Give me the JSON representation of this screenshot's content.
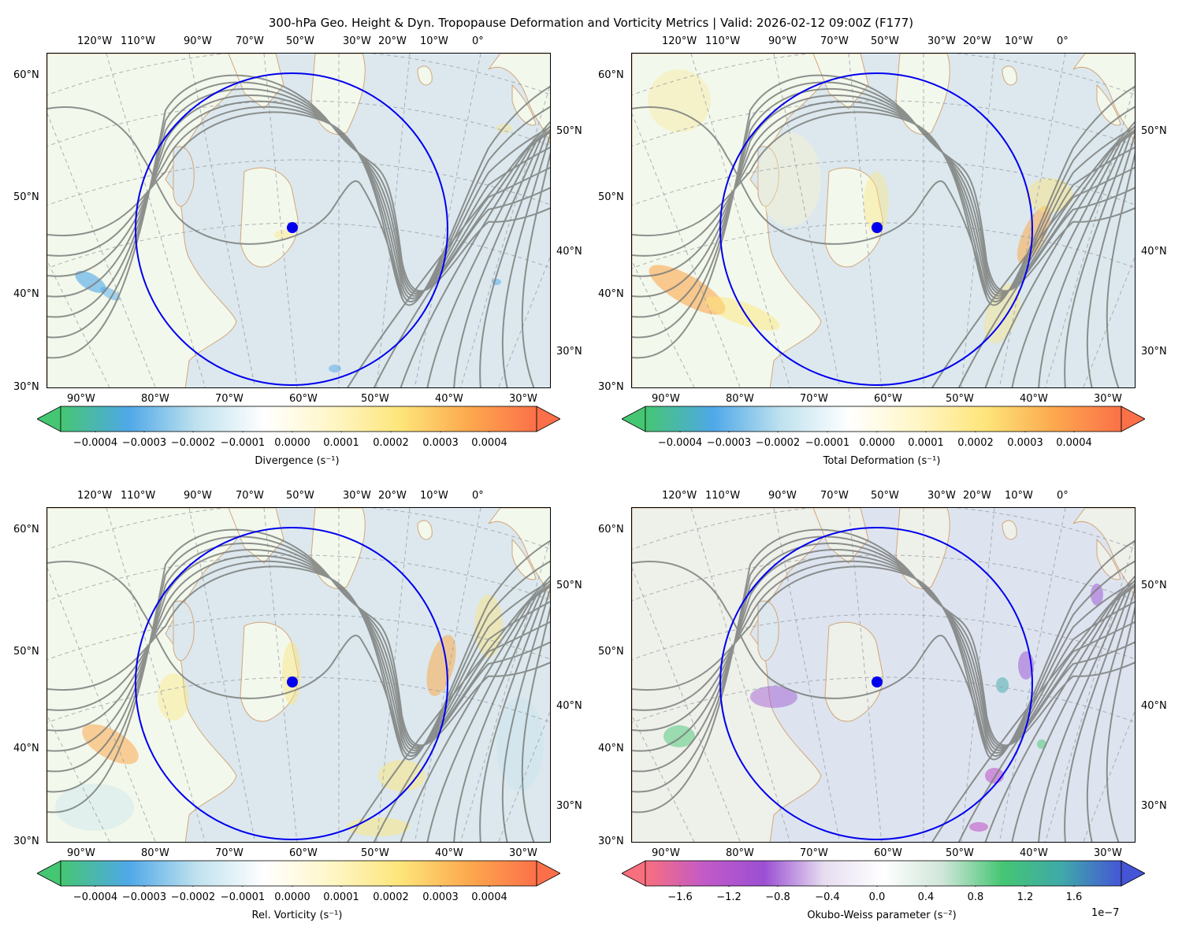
{
  "title": "300-hPa Geo. Height & Dyn. Tropopause Deformation and Vorticity Metrics |  Valid: 2026-02-12 09:00Z (F177)",
  "map_labels": {
    "top_lon": [
      "120°W",
      "110°W",
      "90°W",
      "70°W",
      "50°W",
      "30°W",
      "20°W",
      "10°W",
      "0°"
    ],
    "left_lat": [
      "60°N",
      "50°N",
      "40°N",
      "30°N"
    ],
    "right_lat": [
      "50°N",
      "40°N",
      "30°N"
    ],
    "bottom_lon": [
      "90°W",
      "80°W",
      "70°W",
      "60°W",
      "50°W",
      "40°W",
      "30°W"
    ]
  },
  "panels": [
    {
      "id": "divergence",
      "colorbar_label": "Divergence (s⁻¹)",
      "ticks": [
        "−0.0004",
        "−0.0003",
        "−0.0002",
        "−0.0001",
        "0.0000",
        "0.0001",
        "0.0002",
        "0.0003",
        "0.0004"
      ],
      "colors": [
        "#45c673",
        "#4fa8e8",
        "#bfe2ee",
        "#ffffff",
        "#fff6c6",
        "#fde57a",
        "#fca94e",
        "#fb7048"
      ]
    },
    {
      "id": "total-deformation",
      "colorbar_label": "Total Deformation (s⁻¹)",
      "ticks": [
        "−0.0004",
        "−0.0003",
        "−0.0002",
        "−0.0001",
        "0.0000",
        "0.0001",
        "0.0002",
        "0.0003",
        "0.0004"
      ],
      "colors": [
        "#45c673",
        "#4fa8e8",
        "#bfe2ee",
        "#ffffff",
        "#fff6c6",
        "#fde57a",
        "#fca94e",
        "#fb7048"
      ]
    },
    {
      "id": "relative-vorticity",
      "colorbar_label": "Rel. Vorticity (s⁻¹)",
      "ticks": [
        "−0.0004",
        "−0.0003",
        "−0.0002",
        "−0.0001",
        "0.0000",
        "0.0001",
        "0.0002",
        "0.0003",
        "0.0004"
      ],
      "colors": [
        "#45c673",
        "#4fa8e8",
        "#bfe2ee",
        "#ffffff",
        "#fff6c6",
        "#fde57a",
        "#fca94e",
        "#fb7048"
      ]
    },
    {
      "id": "okubo-weiss",
      "colorbar_label": "Okubo-Weiss parameter (s⁻²)",
      "ticks": [
        "−1.6",
        "−1.2",
        "−0.8",
        "−0.4",
        "0.0",
        "0.4",
        "0.8",
        "1.2",
        "1.6"
      ],
      "exponent": "1e−7",
      "colors": [
        "#f86f7e",
        "#c25ac8",
        "#9b4fd3",
        "#e6ddf0",
        "#ffffff",
        "#cfe6d9",
        "#45c673",
        "#3fa9a8",
        "#4555d6"
      ]
    }
  ]
}
